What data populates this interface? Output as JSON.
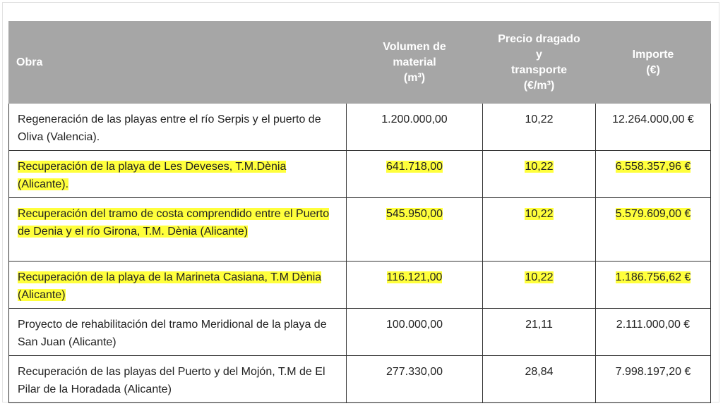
{
  "table": {
    "headers": [
      "Obra",
      "Volumen de\nmaterial\n(m³)",
      "Precio dragado\ny\ntransporte\n(€/m³)",
      "Importe\n(€)"
    ],
    "rows": [
      {
        "cells": [
          "Regeneración de las playas entre el río Serpis y el puerto de Oliva (Valencia).",
          "1.200.000,00",
          "10,22",
          "12.264.000,00 €"
        ],
        "highlighted": false
      },
      {
        "cells": [
          "Recuperación de la playa de Les Deveses, T.M.Dènia (Alicante).",
          "641.718,00",
          "10,22",
          "6.558.357,96 €"
        ],
        "highlighted": true
      },
      {
        "cells": [
          "Recuperación del tramo de costa comprendido entre el Puerto de Denia y el río Girona, T.M. Dènia (Alicante)",
          "545.950,00",
          "10,22",
          "5.579.609,00 €"
        ],
        "highlighted": true
      },
      {
        "cells": [
          "Recuperación de la playa de la Marineta Casiana, T.M Dènia (Alicante)",
          "116.121,00",
          "10,22",
          "1.186.756,62 €"
        ],
        "highlighted": true
      },
      {
        "cells": [
          "Proyecto de rehabilitación del tramo Meridional de la playa de San Juan (Alicante)",
          "100.000,00",
          "21,11",
          "2.111.000,00 €"
        ],
        "highlighted": false
      },
      {
        "cells": [
          "Recuperación de las playas del Puerto y del Mojón, T.M de El Pilar de la Horadada (Alicante)",
          "277.330,00",
          "28,84",
          "7.998.197,20 €"
        ],
        "highlighted": false
      }
    ]
  }
}
